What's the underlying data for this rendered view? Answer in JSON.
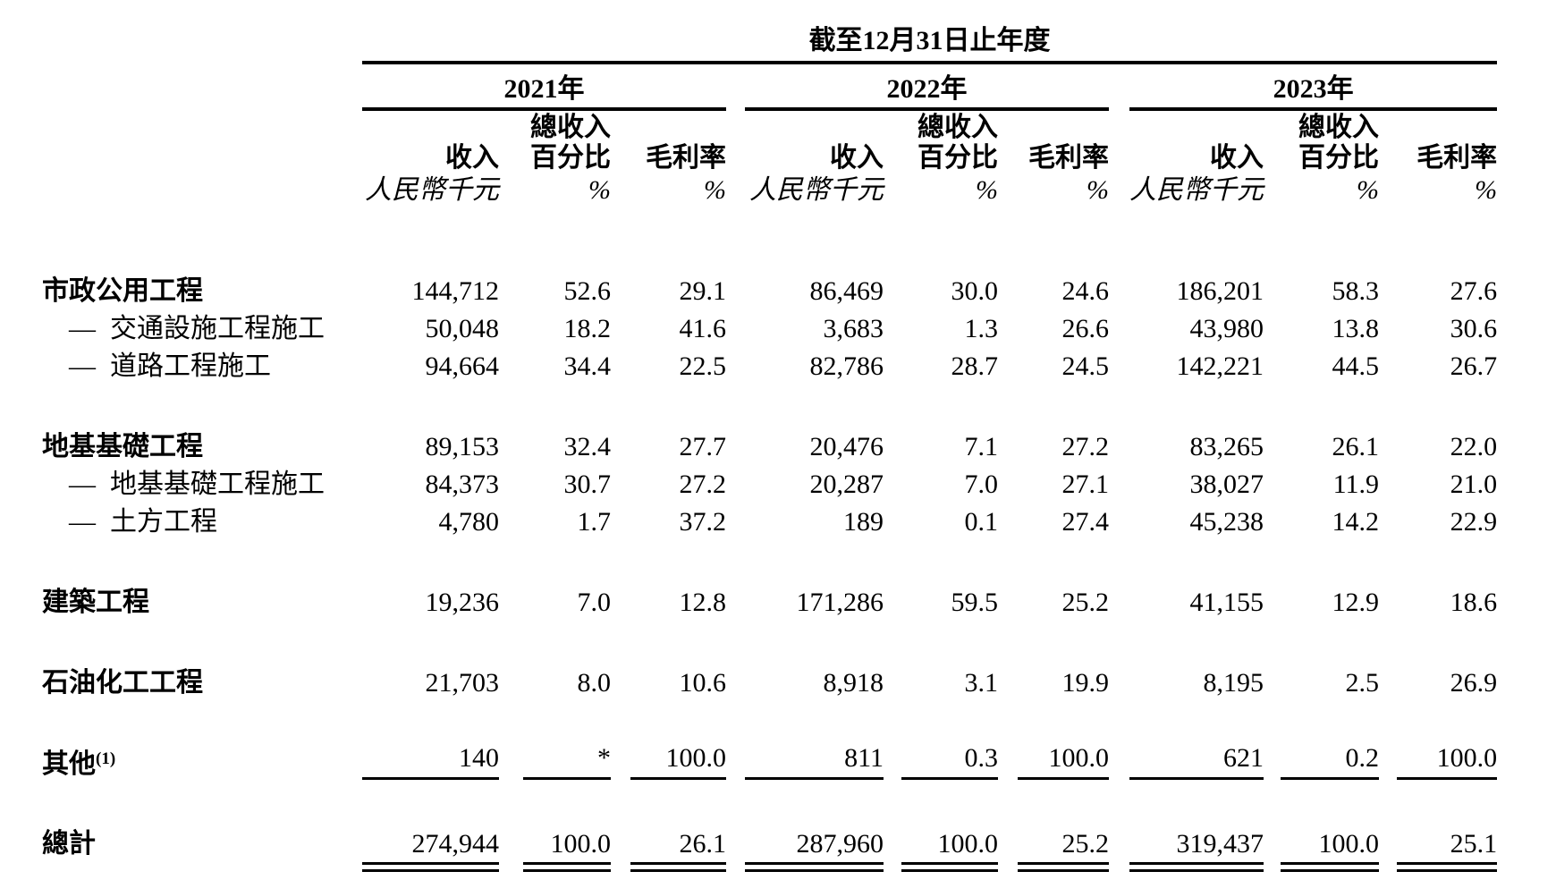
{
  "table": {
    "title": "截至12月31日止年度",
    "years": [
      "2021年",
      "2022年",
      "2023年"
    ],
    "columns": {
      "revenue": "收入",
      "total_rev_pct_top": "總收入",
      "total_rev_pct_bottom": "百分比",
      "gross_margin": "毛利率",
      "revenue_unit": "人民幣千元",
      "pct_unit": "%"
    },
    "sub_row_dash": "—",
    "rows": [
      {
        "label": "市政公用工程",
        "indent": false,
        "group_start": false,
        "rule": "",
        "values": [
          "144,712",
          "52.6",
          "29.1",
          "86,469",
          "30.0",
          "24.6",
          "186,201",
          "58.3",
          "27.6"
        ]
      },
      {
        "label": "交通設施工程施工",
        "indent": true,
        "group_start": false,
        "rule": "",
        "values": [
          "50,048",
          "18.2",
          "41.6",
          "3,683",
          "1.3",
          "26.6",
          "43,980",
          "13.8",
          "30.6"
        ]
      },
      {
        "label": "道路工程施工",
        "indent": true,
        "group_start": false,
        "rule": "",
        "values": [
          "94,664",
          "34.4",
          "22.5",
          "82,786",
          "28.7",
          "24.5",
          "142,221",
          "44.5",
          "26.7"
        ]
      },
      {
        "label": "地基基礎工程",
        "indent": false,
        "group_start": true,
        "rule": "",
        "values": [
          "89,153",
          "32.4",
          "27.7",
          "20,476",
          "7.1",
          "27.2",
          "83,265",
          "26.1",
          "22.0"
        ]
      },
      {
        "label": "地基基礎工程施工",
        "indent": true,
        "group_start": false,
        "rule": "",
        "values": [
          "84,373",
          "30.7",
          "27.2",
          "20,287",
          "7.0",
          "27.1",
          "38,027",
          "11.9",
          "21.0"
        ]
      },
      {
        "label": "土方工程",
        "indent": true,
        "group_start": false,
        "rule": "",
        "values": [
          "4,780",
          "1.7",
          "37.2",
          "189",
          "0.1",
          "27.4",
          "45,238",
          "14.2",
          "22.9"
        ]
      },
      {
        "label": "建築工程",
        "indent": false,
        "group_start": true,
        "rule": "",
        "values": [
          "19,236",
          "7.0",
          "12.8",
          "171,286",
          "59.5",
          "25.2",
          "41,155",
          "12.9",
          "18.6"
        ]
      },
      {
        "label": "石油化工工程",
        "indent": false,
        "group_start": true,
        "rule": "",
        "values": [
          "21,703",
          "8.0",
          "10.6",
          "8,918",
          "3.1",
          "19.9",
          "8,195",
          "2.5",
          "26.9"
        ]
      },
      {
        "label": "其他",
        "sup": "(1)",
        "indent": false,
        "group_start": true,
        "rule": "underline",
        "values": [
          "140",
          "*",
          "100.0",
          "811",
          "0.3",
          "100.0",
          "621",
          "0.2",
          "100.0"
        ]
      },
      {
        "label": "總計",
        "indent": false,
        "group_start": true,
        "rule": "total",
        "values": [
          "274,944",
          "100.0",
          "26.1",
          "287,960",
          "100.0",
          "25.2",
          "319,437",
          "100.0",
          "25.1"
        ]
      }
    ]
  }
}
